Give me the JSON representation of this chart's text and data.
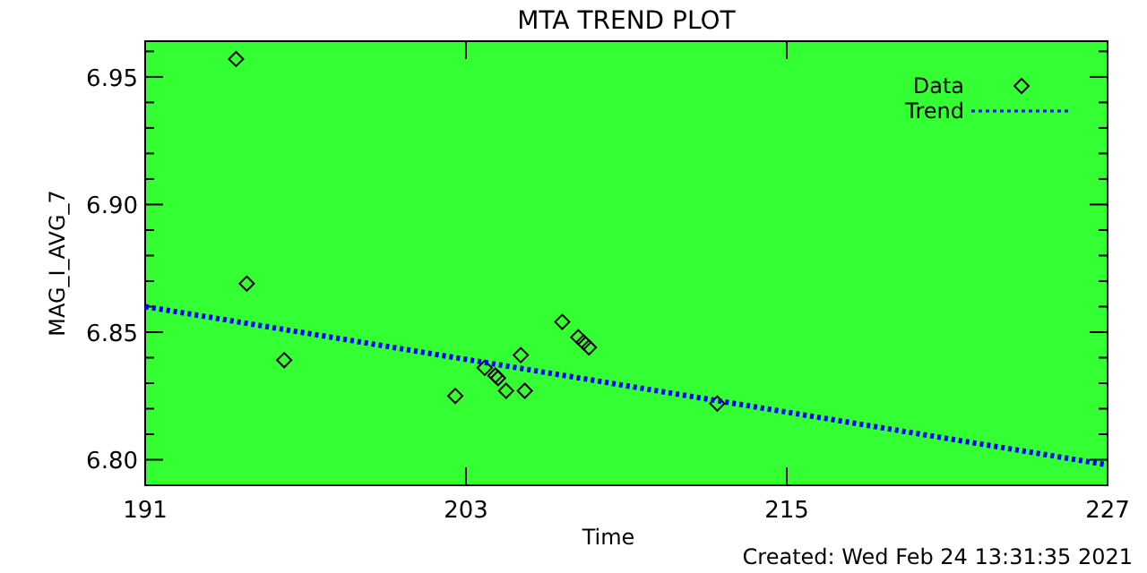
{
  "chart_data": {
    "type": "scatter",
    "title": "MTA TREND PLOT",
    "xlabel": "Time",
    "ylabel": "MAG_I_AVG_7",
    "annotations": [
      "Created: Wed Feb 24 13:31:35 2021"
    ],
    "xlim": [
      191,
      227
    ],
    "xticks": [
      191,
      203,
      215,
      227
    ],
    "ylim": [
      6.79,
      6.964
    ],
    "yticks": [
      {
        "value": 6.8,
        "label": "6.80"
      },
      {
        "value": 6.81,
        "label": null
      },
      {
        "value": 6.82,
        "label": null
      },
      {
        "value": 6.83,
        "label": null
      },
      {
        "value": 6.84,
        "label": null
      },
      {
        "value": 6.85,
        "label": "6.85"
      },
      {
        "value": 6.86,
        "label": null
      },
      {
        "value": 6.87,
        "label": null
      },
      {
        "value": 6.88,
        "label": null
      },
      {
        "value": 6.89,
        "label": null
      },
      {
        "value": 6.9,
        "label": "6.90"
      },
      {
        "value": 6.91,
        "label": null
      },
      {
        "value": 6.92,
        "label": null
      },
      {
        "value": 6.93,
        "label": null
      },
      {
        "value": 6.94,
        "label": null
      },
      {
        "value": 6.95,
        "label": "6.95"
      },
      {
        "value": 6.96,
        "label": null
      }
    ],
    "grid": false,
    "legend": "top right",
    "marker": "diamond",
    "series": [
      {
        "name": "Data",
        "color": "#000000",
        "x": [
          194.4,
          194.8,
          196.2,
          202.6,
          203.7,
          204.1,
          204.2,
          204.5,
          205.05,
          205.2,
          206.6,
          207.2,
          207.4,
          207.6,
          212.4
        ],
        "values": [
          6.957,
          6.869,
          6.839,
          6.825,
          6.836,
          6.833,
          6.832,
          6.827,
          6.841,
          6.827,
          6.854,
          6.848,
          6.846,
          6.844,
          6.822
        ]
      },
      {
        "name": "Trend",
        "type": "line",
        "color": "#0000ff",
        "line_style": "dotted",
        "marker": "none",
        "x": [
          191,
          227
        ],
        "values": [
          6.86,
          6.798
        ]
      }
    ]
  }
}
